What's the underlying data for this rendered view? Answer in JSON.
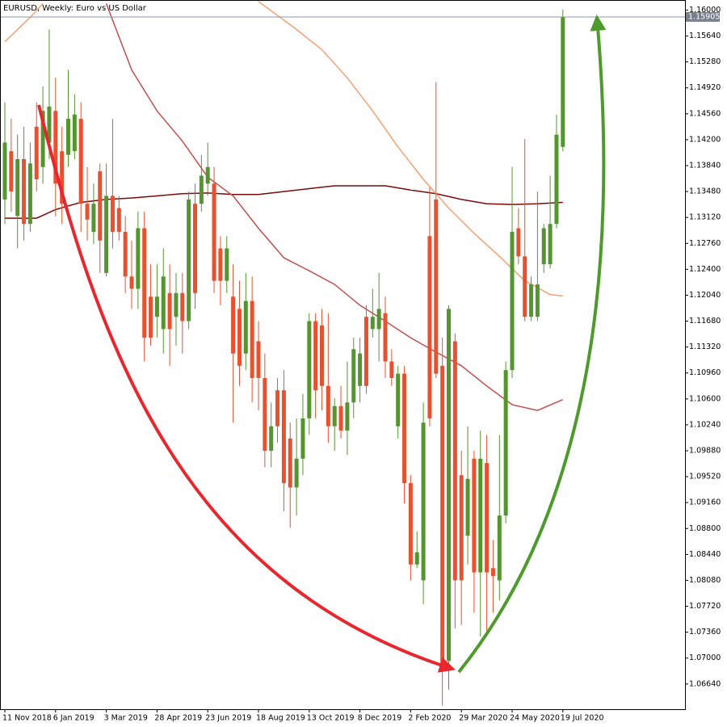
{
  "chart_data": {
    "type": "candlestick",
    "title": "EURUSD, Weekly:  Euro vs US Dollar",
    "categories": [
      "11 Nov 2018",
      null,
      null,
      null,
      null,
      null,
      null,
      null,
      "6 Jan 2019",
      null,
      null,
      null,
      null,
      null,
      null,
      null,
      "3 Mar 2019",
      null,
      null,
      null,
      null,
      null,
      null,
      null,
      "28 Apr 2019",
      null,
      null,
      null,
      null,
      null,
      null,
      null,
      "23 Jun 2019",
      null,
      null,
      null,
      null,
      null,
      null,
      null,
      "18 Aug 2019",
      null,
      null,
      null,
      null,
      null,
      null,
      null,
      "13 Oct 2019",
      null,
      null,
      null,
      null,
      null,
      null,
      null,
      "8 Dec 2019",
      null,
      null,
      null,
      null,
      null,
      null,
      null,
      "2 Feb 2020",
      null,
      null,
      null,
      null,
      null,
      null,
      null,
      "29 Mar 2020",
      null,
      null,
      null,
      null,
      null,
      null,
      null,
      "24 May 2020",
      null,
      null,
      null,
      null,
      null,
      null,
      null,
      "19 Jul 2020"
    ],
    "open": [
      1.1337,
      1.1404,
      1.1314,
      1.1393,
      1.1303,
      1.1438,
      1.1382,
      1.1416,
      1.146,
      1.1404,
      1.1399,
      1.1404,
      1.1449,
      1.1331,
      1.1292,
      1.1376,
      1.1235,
      1.1342,
      1.1325,
      1.1292,
      1.123,
      1.1213,
      1.1297,
      1.1202,
      1.1174,
      1.1157,
      1.1207,
      1.1174,
      1.1207,
      1.1168,
      1.1331,
      1.1331,
      1.1359,
      1.1359,
      1.1269,
      1.1224,
      1.1202,
      1.1185,
      1.1123,
      1.1196,
      1.114,
      1.1089,
      1.0988,
      1.1072,
      1.1072,
      1.1005,
      1.0937,
      1.0977,
      1.1033,
      1.1168,
      1.1162,
      1.1078,
      1.1022,
      1.105,
      1.1016,
      1.1055,
      1.1078,
      1.1174,
      1.1157,
      1.1157,
      1.1179,
      1.1112,
      1.1022,
      1.1095,
      1.0943,
      1.083,
      1.0808,
      1.1286,
      1.1337,
      1.1106,
      1.0696,
      1.114,
      1.0954,
      1.087,
      1.0977,
      1.0819,
      1.0971,
      1.0825,
      1.0808,
      1.0898,
      1.11,
      1.1297,
      1.1258,
      1.1174,
      1.1174,
      1.1247,
      1.1247,
      1.1303,
      1.141
    ],
    "high": [
      1.1472,
      1.1449,
      1.1427,
      1.1438,
      1.1416,
      1.1472,
      1.1494,
      1.1573,
      1.1506,
      1.1438,
      1.1517,
      1.1483,
      1.1472,
      1.1382,
      1.1359,
      1.1387,
      1.1387,
      1.1449,
      1.1342,
      1.1314,
      1.128,
      1.132,
      1.132,
      1.1247,
      1.1247,
      1.1269,
      1.1247,
      1.1235,
      1.1235,
      1.1348,
      1.1359,
      1.1399,
      1.1416,
      1.1382,
      1.1286,
      1.1286,
      1.1247,
      1.1224,
      1.1235,
      1.123,
      1.1168,
      1.1123,
      1.1055,
      1.1089,
      1.11,
      1.1027,
      1.1033,
      1.1067,
      1.1179,
      1.1179,
      1.1185,
      1.1179,
      1.1061,
      1.1078,
      1.1112,
      1.1145,
      1.1145,
      1.119,
      1.1213,
      1.1235,
      1.1202,
      1.1129,
      1.1106,
      1.1106,
      1.0954,
      1.0876,
      1.1055,
      1.1354,
      1.15,
      1.1145,
      1.119,
      1.1151,
      1.0988,
      1.1022,
      1.0988,
      1.1016,
      1.101,
      1.0864,
      1.101,
      1.1112,
      1.1382,
      1.1325,
      1.1421,
      1.123,
      1.1348,
      1.1303,
      1.137,
      1.1455,
      1.1601
    ],
    "low": [
      1.1303,
      1.132,
      1.1269,
      1.128,
      1.1292,
      1.1348,
      1.1359,
      1.1393,
      1.1314,
      1.1303,
      1.1382,
      1.1393,
      1.1292,
      1.128,
      1.1275,
      1.1235,
      1.123,
      1.1269,
      1.128,
      1.1207,
      1.1185,
      1.1185,
      1.1112,
      1.1134,
      1.1145,
      1.1123,
      1.1106,
      1.1134,
      1.1123,
      1.1157,
      1.1185,
      1.132,
      1.1342,
      1.1207,
      1.119,
      1.1207,
      1.1027,
      1.1078,
      1.11,
      1.1055,
      1.1044,
      1.0965,
      1.0965,
      1.0999,
      1.0904,
      1.0881,
      1.0898,
      1.0954,
      1.101,
      1.1033,
      1.1044,
      1.0999,
      1.0988,
      1.1005,
      1.0982,
      1.1033,
      1.1055,
      1.1067,
      1.1145,
      1.1112,
      1.1089,
      1.1078,
      1.1005,
      1.0915,
      1.0808,
      1.0825,
      1.0775,
      1.1022,
      1.1089,
      1.0634,
      1.0656,
      1.0741,
      1.0746,
      1.083,
      1.0763,
      1.073,
      1.073,
      1.0763,
      1.078,
      1.0887,
      1.1089,
      1.1247,
      1.1168,
      1.1168,
      1.1168,
      1.1235,
      1.1241,
      1.1297,
      1.1404
    ],
    "close": [
      1.1416,
      1.1348,
      1.1393,
      1.1303,
      1.1387,
      1.1365,
      1.146,
      1.1466,
      1.1359,
      1.1331,
      1.1449,
      1.1455,
      1.1331,
      1.1309,
      1.1331,
      1.128,
      1.1342,
      1.1292,
      1.1292,
      1.123,
      1.1213,
      1.1297,
      1.1145,
      1.1145,
      1.1202,
      1.123,
      1.1157,
      1.1207,
      1.1168,
      1.1337,
      1.1207,
      1.137,
      1.1382,
      1.1224,
      1.1224,
      1.1269,
      1.1123,
      1.1106,
      1.1196,
      1.1089,
      1.1089,
      1.0988,
      1.1022,
      1.1022,
      1.0943,
      1.0937,
      1.0977,
      1.1033,
      1.1168,
      1.1072,
      1.1078,
      1.1022,
      1.105,
      1.1016,
      1.1055,
      1.1129,
      1.1123,
      1.1078,
      1.1174,
      1.1185,
      1.1112,
      1.1089,
      1.1095,
      1.0943,
      1.083,
      1.0847,
      1.1027,
      1.1033,
      1.1095,
      1.0684,
      1.1185,
      1.0808,
      1.0808,
      1.0949,
      1.0819,
      1.0977,
      1.0819,
      1.0814,
      1.0898,
      1.11,
      1.1292,
      1.1258,
      1.1174,
      1.1219,
      1.1219,
      1.1297,
      1.1303,
      1.1427,
      1.15905
    ],
    "up_color": "#549530",
    "down_color": "#e8502e",
    "ylim": [
      1.0629,
      1.1614
    ],
    "yticks": [
      {
        "value": 1.16,
        "label": "1.16000"
      },
      {
        "value": 1.1564,
        "label": "1.15640"
      },
      {
        "value": 1.1528,
        "label": "1.15280"
      },
      {
        "value": 1.1492,
        "label": "1.14920"
      },
      {
        "value": 1.1456,
        "label": "1.14560"
      },
      {
        "value": 1.142,
        "label": "1.14200"
      },
      {
        "value": 1.1384,
        "label": "1.13840"
      },
      {
        "value": 1.1348,
        "label": "1.13480"
      },
      {
        "value": 1.1312,
        "label": "1.13120"
      },
      {
        "value": 1.1276,
        "label": "1.12760"
      },
      {
        "value": 1.124,
        "label": "1.12400"
      },
      {
        "value": 1.1204,
        "label": "1.12040"
      },
      {
        "value": 1.1168,
        "label": "1.11680"
      },
      {
        "value": 1.1132,
        "label": "1.11320"
      },
      {
        "value": 1.1096,
        "label": "1.10960"
      },
      {
        "value": 1.106,
        "label": "1.10600"
      },
      {
        "value": 1.1024,
        "label": "1.10240"
      },
      {
        "value": 1.0988,
        "label": "1.09880"
      },
      {
        "value": 1.0952,
        "label": "1.09520"
      },
      {
        "value": 1.0916,
        "label": "1.09160"
      },
      {
        "value": 1.088,
        "label": "1.08800"
      },
      {
        "value": 1.0844,
        "label": "1.08440"
      },
      {
        "value": 1.0808,
        "label": "1.08080"
      },
      {
        "value": 1.0772,
        "label": "1.07720"
      },
      {
        "value": 1.0736,
        "label": "1.07360"
      },
      {
        "value": 1.07,
        "label": "1.07000"
      },
      {
        "value": 1.0664,
        "label": "1.06640"
      }
    ],
    "last_price": 1.15905,
    "lines": [
      {
        "color": "#7a0a0a",
        "x": [
          0,
          5,
          8,
          12,
          16,
          20,
          24,
          28,
          32,
          36,
          40,
          44,
          48,
          52,
          56,
          60,
          64,
          68,
          72,
          76,
          80,
          84,
          88
        ],
        "values": [
          1.1311,
          1.1311,
          1.1323,
          1.1333,
          1.1337,
          1.1339,
          1.1342,
          1.1345,
          1.1346,
          1.1344,
          1.1344,
          1.1348,
          1.1352,
          1.1356,
          1.1356,
          1.1356,
          1.135,
          1.1345,
          1.1337,
          1.1331,
          1.133,
          1.1331,
          1.1333
        ]
      },
      {
        "color": "#c0504d",
        "x": [
          16,
          20,
          24,
          28,
          32,
          36,
          40,
          44,
          48,
          52,
          56,
          60,
          64,
          68,
          72,
          76,
          80,
          84,
          88
        ],
        "values": [
          1.1609,
          1.1517,
          1.146,
          1.1418,
          1.1368,
          1.1342,
          1.1297,
          1.1256,
          1.1238,
          1.1219,
          1.119,
          1.1168,
          1.1145,
          1.1125,
          1.1106,
          1.1078,
          1.1052,
          1.1044,
          1.1059
        ]
      },
      {
        "color": "#f4a070",
        "x": [
          0,
          4,
          6,
          null,
          40,
          46,
          50,
          54,
          58,
          62,
          66,
          70,
          74,
          78,
          82,
          86,
          88
        ],
        "values": [
          1.1556,
          1.159,
          1.1609,
          null,
          1.1612,
          1.1573,
          1.1545,
          1.1506,
          1.146,
          1.141,
          1.1365,
          1.1325,
          1.129,
          1.1258,
          1.1224,
          1.1205,
          1.1203
        ]
      }
    ]
  }
}
